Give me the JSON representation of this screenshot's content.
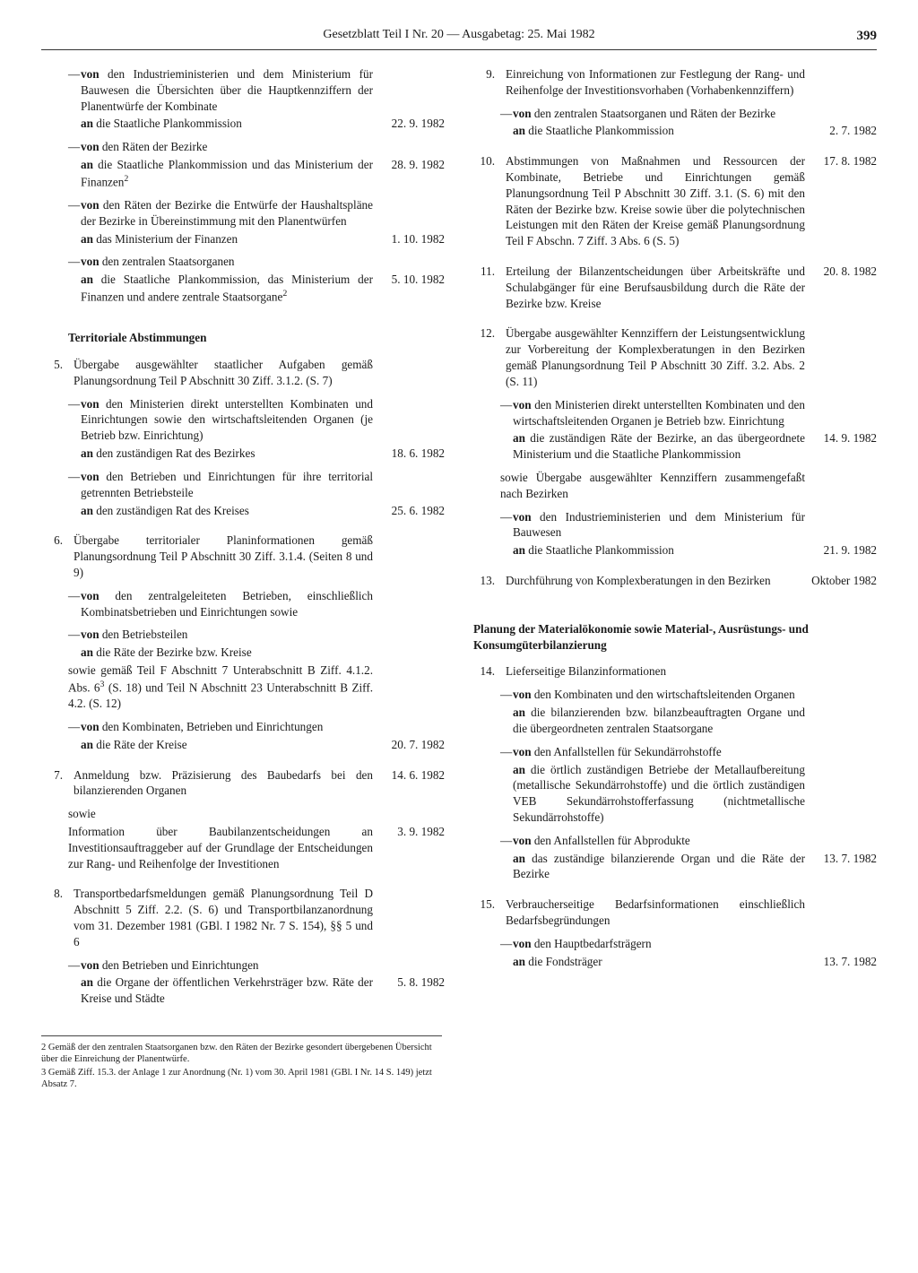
{
  "header": {
    "title": "Gesetzblatt Teil I Nr. 20 — Ausgabetag: 25. Mai 1982",
    "page": "399"
  },
  "left": {
    "pre_items": [
      {
        "dash": true,
        "text": "<b>von</b> den Industrieministerien und dem Ministerium für Bauwesen die Übersichten über die Hauptkennziffern der Planentwürfe der Kombinate",
        "date": ""
      },
      {
        "dash": false,
        "text": "<b>an</b> die Staatliche Plankommission",
        "date": "22.  9. 1982"
      },
      {
        "dash": true,
        "text": "<b>von</b> den Räten der Bezirke",
        "date": ""
      },
      {
        "dash": false,
        "text": "<b>an</b> die Staatliche Plankommission und das Ministerium der Finanzen<sup>2</sup>",
        "date": "28.  9. 1982"
      },
      {
        "dash": true,
        "text": "<b>von</b> den Räten der Bezirke die Entwürfe der Haushaltspläne der Bezirke in Übereinstimmung mit den Planentwürfen",
        "date": ""
      },
      {
        "dash": false,
        "text": "<b>an</b> das Ministerium der Finanzen",
        "date": "1. 10. 1982"
      },
      {
        "dash": true,
        "text": "<b>von</b> den zentralen Staatsorganen",
        "date": ""
      },
      {
        "dash": false,
        "text": "<b>an</b> die Staatliche Plankommission, das Ministerium der Finanzen und andere zentrale Staatsorgane<sup>2</sup>",
        "date": "5. 10. 1982"
      }
    ],
    "section_head": "Territoriale Abstimmungen",
    "items": [
      {
        "num": "5.",
        "lead": "Übergabe ausgewählter staatlicher Aufgaben gemäß Planungsordnung Teil P Abschnitt 30 Ziff. 3.1.2. (S. 7)",
        "subs": [
          {
            "dash": true,
            "text": "<b>von</b> den Ministerien direkt unterstellten Kombinaten und Einrichtungen sowie den wirtschaftsleitenden Organen (je Betrieb bzw. Einrichtung)",
            "date": ""
          },
          {
            "dash": false,
            "text": "<b>an</b> den zuständigen Rat des Bezirkes",
            "date": "18.  6. 1982"
          },
          {
            "dash": true,
            "text": "<b>von</b> den Betrieben und Einrichtungen für ihre territorial getrennten Betriebsteile",
            "date": ""
          },
          {
            "dash": false,
            "text": "<b>an</b> den zuständigen Rat des Kreises",
            "date": "25.  6. 1982"
          }
        ]
      },
      {
        "num": "6.",
        "lead": "Übergabe territorialer Planinformationen gemäß Planungsordnung Teil P Abschnitt 30 Ziff. 3.1.4. (Seiten 8 und 9)",
        "subs": [
          {
            "dash": true,
            "text": "<b>von</b> den zentralgeleiteten Betrieben, einschließlich Kombinatsbetrieben und Einrichtungen sowie",
            "date": ""
          },
          {
            "dash": true,
            "text": "<b>von</b> den Betriebsteilen",
            "date": ""
          },
          {
            "dash": false,
            "text": "<b>an</b> die Räte der Bezirke bzw. Kreise",
            "date": ""
          },
          {
            "dash": false,
            "plain": true,
            "text": "sowie gemäß Teil F Abschnitt 7 Unterabschnitt B Ziff. 4.1.2. Abs. 6<sup>3</sup> (S. 18) und Teil N Abschnitt 23 Unterabschnitt B Ziff. 4.2. (S. 12)",
            "date": ""
          },
          {
            "dash": true,
            "text": "<b>von</b> den Kombinaten, Betrieben und Einrichtungen",
            "date": ""
          },
          {
            "dash": false,
            "text": "<b>an</b> die Räte der Kreise",
            "date": "20.  7. 1982"
          }
        ]
      },
      {
        "num": "7.",
        "lead": "Anmeldung bzw. Präzisierung des Baubedarfs bei den bilanzierenden Organen",
        "lead_date": "14.  6. 1982",
        "subs": [
          {
            "dash": false,
            "plain": true,
            "text": "sowie",
            "date": ""
          },
          {
            "dash": false,
            "plain": true,
            "text": "Information über Baubilanzentscheidungen an Investitionsauftraggeber auf der Grundlage der Entscheidungen zur Rang- und Reihenfolge der Investitionen",
            "date": "3.  9. 1982"
          }
        ]
      },
      {
        "num": "8.",
        "lead": "Transportbedarfsmeldungen gemäß Planungsordnung Teil D Abschnitt 5 Ziff. 2.2. (S. 6) und Transportbilanzanordnung vom 31. Dezember 1981 (GBl. I 1982 Nr. 7 S. 154), §§ 5 und 6",
        "subs": [
          {
            "dash": true,
            "text": "<b>von</b> den Betrieben und Einrichtungen",
            "date": ""
          },
          {
            "dash": false,
            "text": "<b>an</b> die Organe der öffentlichen Verkehrsträger bzw. Räte der Kreise und Städte",
            "date": "5.  8. 1982"
          }
        ]
      }
    ]
  },
  "right": {
    "items": [
      {
        "num": "9.",
        "lead": "Einreichung von Informationen zur Festlegung der Rang- und Reihenfolge der Investitionsvorhaben (Vorhabenkennziffern)",
        "subs": [
          {
            "dash": true,
            "text": "<b>von</b> den zentralen Staatsorganen und Räten der Bezirke",
            "date": ""
          },
          {
            "dash": false,
            "text": "<b>an</b> die Staatliche Plankommission",
            "date": "2.  7. 1982"
          }
        ]
      },
      {
        "num": "10.",
        "lead": "Abstimmungen von Maßnahmen und Ressourcen der Kombinate, Betriebe und Einrichtungen gemäß Planungsordnung Teil P Abschnitt 30 Ziff. 3.1. (S. 6) mit den Räten der Bezirke bzw. Kreise sowie über die polytechnischen Leistungen mit den Räten der Kreise gemäß Planungsordnung Teil F Abschn. 7 Ziff. 3 Abs. 6 (S. 5)",
        "lead_date": "17.  8. 1982",
        "subs": []
      },
      {
        "num": "11.",
        "lead": "Erteilung der Bilanzentscheidungen über Arbeitskräfte und Schulabgänger für eine Berufsausbildung durch die Räte der Bezirke bzw. Kreise",
        "lead_date": "20.  8. 1982",
        "subs": []
      },
      {
        "num": "12.",
        "lead": "Übergabe ausgewählter Kennziffern der Leistungsentwicklung zur Vorbereitung der Komplexberatungen in den Bezirken gemäß Planungsordnung Teil P Abschnitt 30 Ziff. 3.2. Abs. 2 (S. 11)",
        "subs": [
          {
            "dash": true,
            "text": "<b>von</b> den Ministerien direkt unterstellten Kombinaten und den wirtschaftsleitenden Organen je Betrieb bzw. Einrichtung",
            "date": ""
          },
          {
            "dash": false,
            "text": "<b>an</b> die zuständigen Räte der Bezirke, an das übergeordnete Ministerium und die Staatliche Plankommission",
            "date": "14.  9. 1982"
          },
          {
            "dash": false,
            "plain": true,
            "text": "sowie Übergabe ausgewählter Kennziffern zusammengefaßt nach Bezirken",
            "date": ""
          },
          {
            "dash": true,
            "text": "<b>von</b> den Industrieministerien und dem Ministerium für Bauwesen",
            "date": ""
          },
          {
            "dash": false,
            "text": "<b>an</b> die Staatliche Plankommission",
            "date": "21.  9. 1982"
          }
        ]
      },
      {
        "num": "13.",
        "lead": "Durchführung von Komplexberatungen in den Bezirken",
        "lead_date": "Oktober 1982",
        "subs": []
      }
    ],
    "section_head": "Planung der Materialökonomie sowie Material-, Ausrüstungs- und Konsumgüterbilanzierung",
    "items2": [
      {
        "num": "14.",
        "lead": "Lieferseitige Bilanzinformationen",
        "subs": [
          {
            "dash": true,
            "text": "<b>von</b> den Kombinaten und den wirtschaftsleitenden Organen",
            "date": ""
          },
          {
            "dash": false,
            "text": "<b>an</b> die bilanzierenden bzw. bilanzbeauftragten Organe und die übergeordneten zentralen Staatsorgane",
            "date": ""
          },
          {
            "dash": true,
            "text": "<b>von</b> den Anfallstellen für Sekundärrohstoffe",
            "date": ""
          },
          {
            "dash": false,
            "text": "<b>an</b> die örtlich zuständigen Betriebe der Metallaufbereitung (metallische Sekundärrohstoffe) und die örtlich zuständigen VEB Sekundärrohstofferfassung (nichtmetallische Sekundärrohstoffe)",
            "date": ""
          },
          {
            "dash": true,
            "text": "<b>von</b> den Anfallstellen für Abprodukte",
            "date": ""
          },
          {
            "dash": false,
            "text": "<b>an</b> das zuständige bilanzierende Organ und die Räte der Bezirke",
            "date": "13.  7. 1982"
          }
        ]
      },
      {
        "num": "15.",
        "lead": "Verbraucherseitige Bedarfsinformationen einschließlich Bedarfsbegründungen",
        "subs": [
          {
            "dash": true,
            "text": "<b>von</b> den Hauptbedarfsträgern",
            "date": ""
          },
          {
            "dash": false,
            "text": "<b>an</b> die Fondsträger",
            "date": "13.  7. 1982"
          }
        ]
      }
    ]
  },
  "footnotes": [
    "2 Gemäß der den zentralen Staatsorganen bzw. den Räten der Bezirke gesondert übergebenen Übersicht über die Einreichung der Planentwürfe.",
    "3 Gemäß Ziff. 15.3. der Anlage 1 zur Anordnung (Nr. 1) vom 30. April 1981 (GBl. I Nr. 14 S. 149) jetzt Absatz 7."
  ]
}
